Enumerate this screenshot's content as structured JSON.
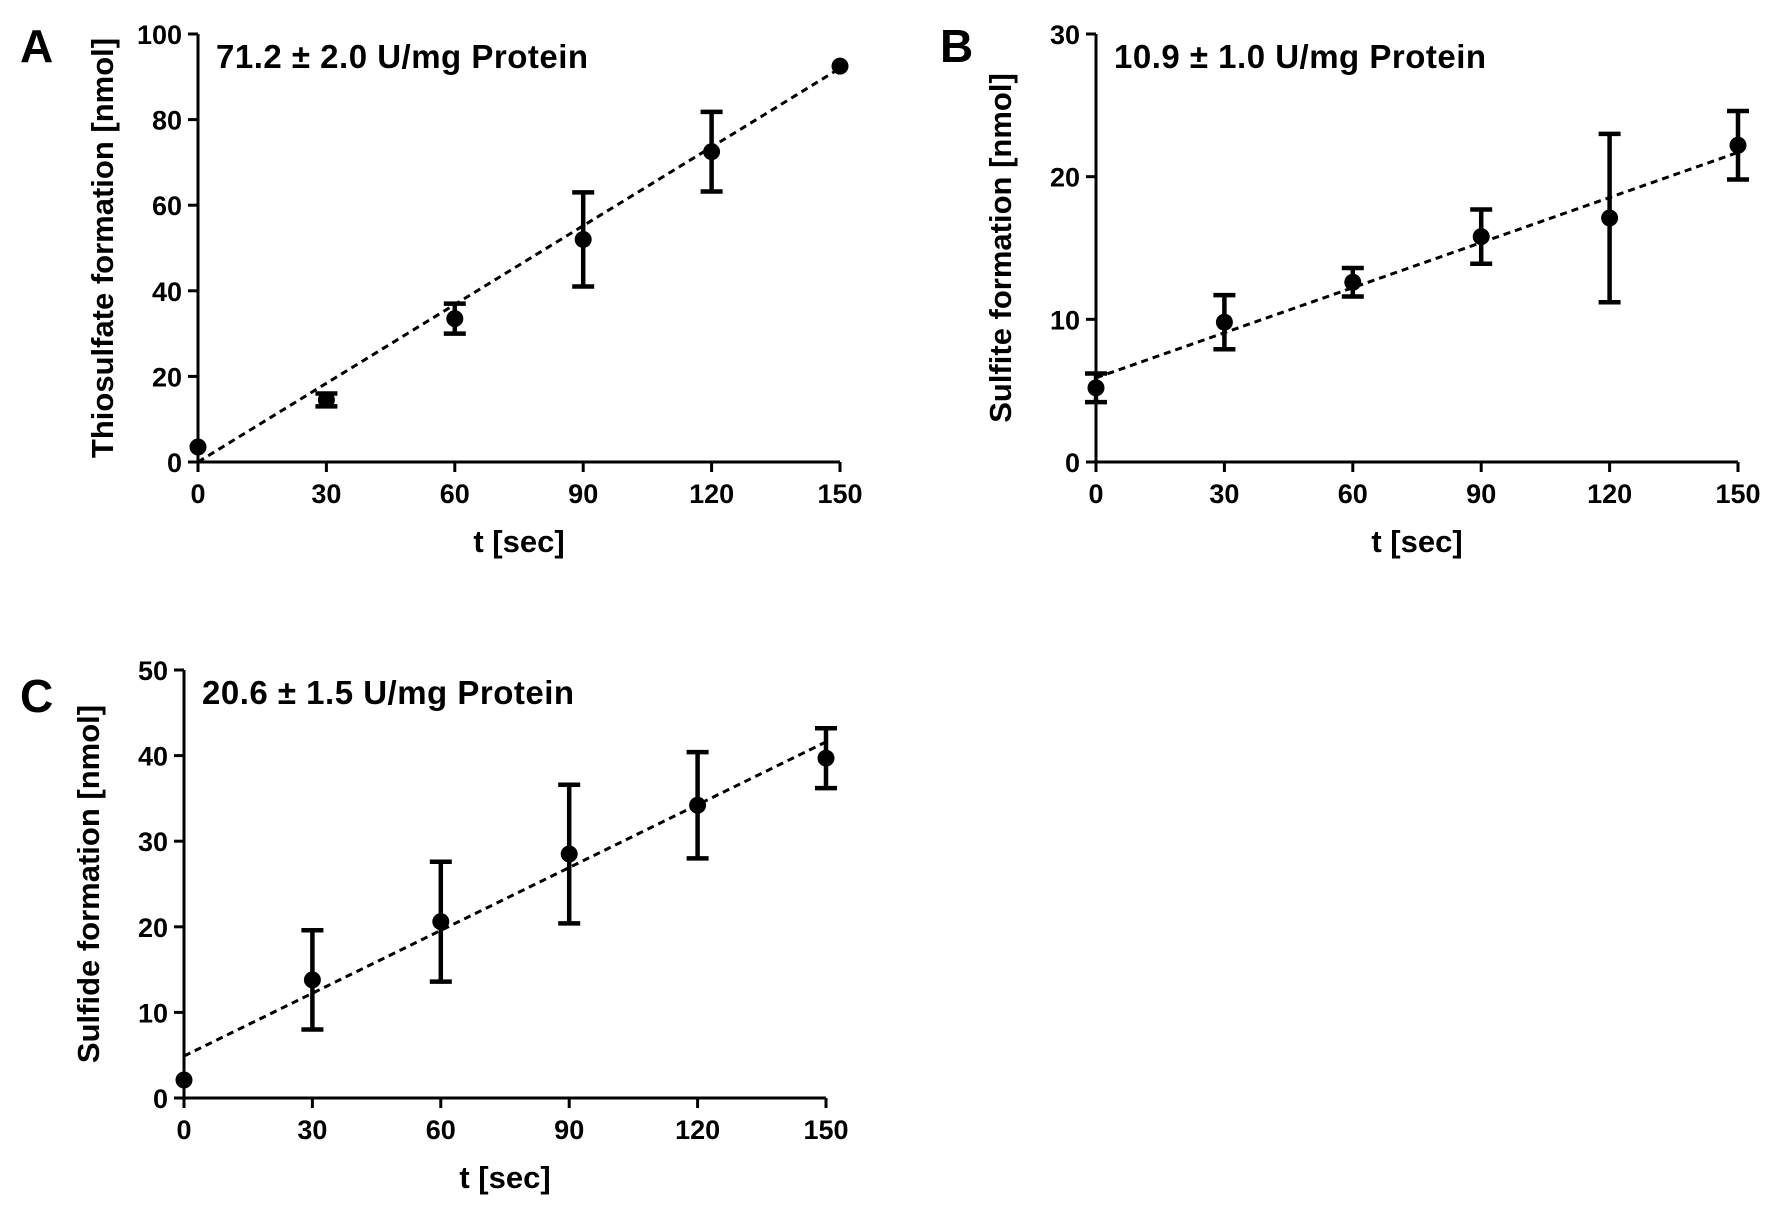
{
  "chart_data": [
    {
      "type": "scatter",
      "panel": "A",
      "annotation": "71.2 ± 2.0 U/mg Protein",
      "xlabel": "t [sec]",
      "ylabel": "Thiosulfate formation [nmol]",
      "xlim": [
        0,
        150
      ],
      "ylim": [
        0,
        100
      ],
      "xticks": [
        0,
        30,
        60,
        90,
        120,
        150
      ],
      "yticks": [
        0,
        20,
        40,
        60,
        80,
        100
      ],
      "x": [
        0,
        30,
        60,
        90,
        120,
        150
      ],
      "y": [
        3.5,
        14.5,
        33.5,
        52,
        72.5,
        92.5
      ],
      "error": [
        0,
        1.5,
        3.5,
        11,
        9.3,
        0
      ],
      "fit": {
        "style": "dashed",
        "x": [
          0,
          150
        ],
        "y": [
          0,
          92
        ]
      },
      "grid": false
    },
    {
      "type": "scatter",
      "panel": "B",
      "annotation": "10.9 ± 1.0 U/mg Protein",
      "xlabel": "t [sec]",
      "ylabel": "Sulfite formation [nmol]",
      "xlim": [
        0,
        150
      ],
      "ylim": [
        0,
        30
      ],
      "xticks": [
        0,
        30,
        60,
        90,
        120,
        150
      ],
      "yticks": [
        0,
        10,
        20,
        30
      ],
      "x": [
        0,
        30,
        60,
        90,
        120,
        150
      ],
      "y": [
        5.2,
        9.8,
        12.6,
        15.8,
        17.1,
        22.2
      ],
      "error": [
        1.0,
        1.9,
        1.0,
        1.9,
        5.9,
        2.4
      ],
      "fit": {
        "style": "dashed",
        "x": [
          0,
          150
        ],
        "y": [
          5.9,
          21.7
        ]
      },
      "grid": false
    },
    {
      "type": "scatter",
      "panel": "C",
      "annotation": "20.6 ± 1.5 U/mg Protein",
      "xlabel": "t [sec]",
      "ylabel": "Sulfide formation [nmol]",
      "xlim": [
        0,
        150
      ],
      "ylim": [
        0,
        50
      ],
      "xticks": [
        0,
        30,
        60,
        90,
        120,
        150
      ],
      "yticks": [
        0,
        10,
        20,
        30,
        40,
        50
      ],
      "x": [
        0,
        30,
        60,
        90,
        120,
        150
      ],
      "y": [
        2.1,
        13.8,
        20.6,
        28.5,
        34.2,
        39.7
      ],
      "error": [
        0,
        5.8,
        7.0,
        8.1,
        6.2,
        3.5
      ],
      "fit": {
        "style": "dashed",
        "x": [
          0,
          150
        ],
        "y": [
          4.9,
          41.6
        ]
      },
      "grid": false
    }
  ]
}
